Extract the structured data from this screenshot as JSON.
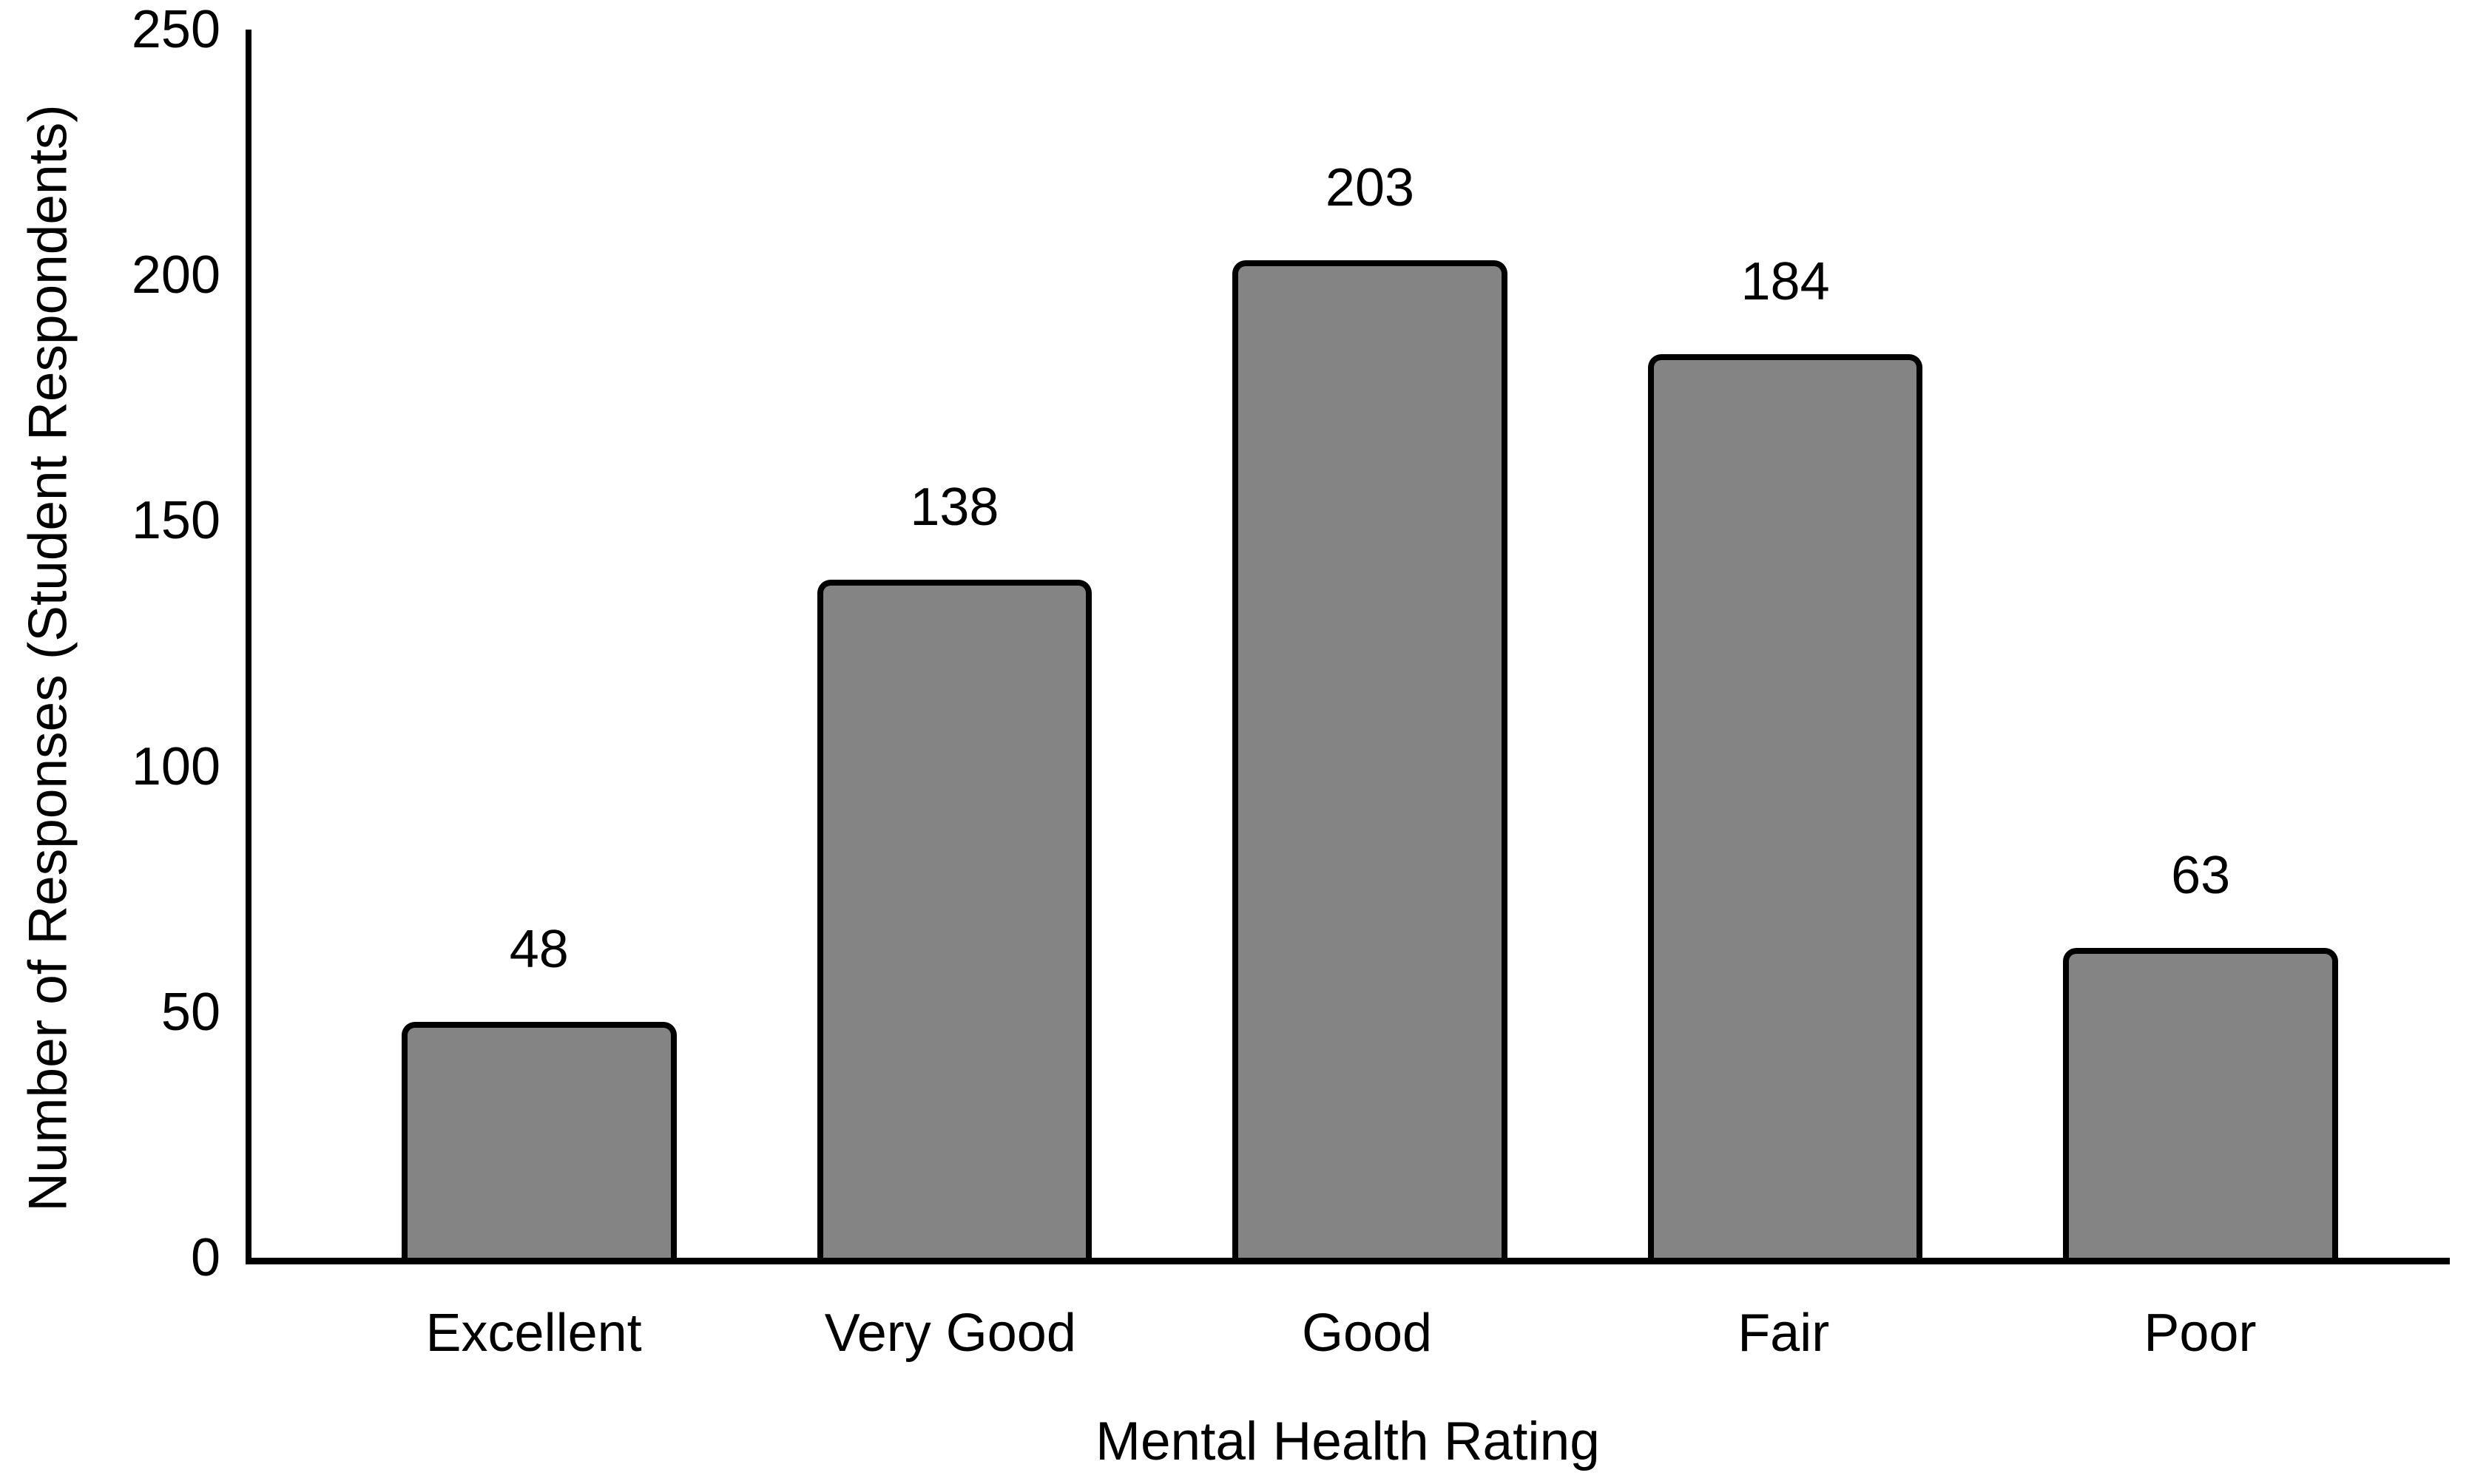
{
  "chart_data": {
    "type": "bar",
    "title": "",
    "xlabel": "Mental Health Rating",
    "ylabel": "Number of Responses (Student Respondents)",
    "categories": [
      "Excellent",
      "Very Good",
      "Good",
      "Fair",
      "Poor"
    ],
    "values": [
      48,
      138,
      203,
      184,
      63
    ],
    "yticks": [
      0,
      50,
      100,
      150,
      200,
      250
    ],
    "ylim": [
      0,
      250
    ],
    "grid": false,
    "legend": "none",
    "data_labels_shown": true,
    "bar_fill_color": "#848484",
    "bar_border_color": "#000000",
    "axis_color": "#000000",
    "text_color": "#000000",
    "background_color": "#ffffff"
  }
}
